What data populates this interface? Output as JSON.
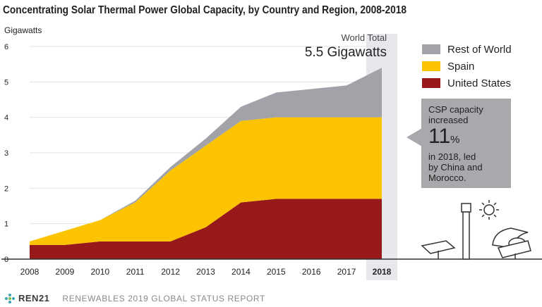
{
  "chart_data": {
    "type": "area",
    "title": "Concentrating Solar Thermal Power Global Capacity, by Country and Region, 2008-2018",
    "ylabel": "Gigawatts",
    "xlabel": "",
    "x": [
      "2008",
      "2009",
      "2010",
      "2011",
      "2012",
      "2013",
      "2014",
      "2015",
      "2016",
      "2017",
      "2018"
    ],
    "highlight_x": "2018",
    "ylim": [
      0,
      6
    ],
    "yticks": [
      "0",
      "1",
      "2",
      "3",
      "4",
      "5",
      "6"
    ],
    "stacked": true,
    "series": [
      {
        "name": "United States",
        "color": "#98191a",
        "values": [
          0.4,
          0.4,
          0.5,
          0.5,
          0.5,
          0.9,
          1.6,
          1.7,
          1.7,
          1.7,
          1.7
        ]
      },
      {
        "name": "Spain",
        "color": "#fcc300",
        "values": [
          0.1,
          0.4,
          0.6,
          1.1,
          2.0,
          2.3,
          2.3,
          2.3,
          2.3,
          2.3,
          2.3
        ]
      },
      {
        "name": "Rest of World",
        "color": "#a1a3a8",
        "values": [
          0.0,
          0.0,
          0.0,
          0.05,
          0.1,
          0.2,
          0.4,
          0.7,
          0.8,
          0.9,
          1.4
        ]
      }
    ],
    "legend_position": "right",
    "annotations": {
      "world_total_label": "World Total",
      "world_total_value": "5.5 Gigawatts"
    }
  },
  "callout": {
    "line1": "CSP capacity",
    "line2": "increased",
    "big": "11",
    "big_unit": "%",
    "line3": "in 2018, led",
    "line4": "by China and",
    "line5": "Morocco."
  },
  "footer": {
    "logo_text": "REN21",
    "report": "RENEWABLES 2019 GLOBAL STATUS REPORT"
  },
  "colors": {
    "highlight_band": "#e6e8ec",
    "axis": "#333333",
    "callout": "#a7a9ac"
  }
}
